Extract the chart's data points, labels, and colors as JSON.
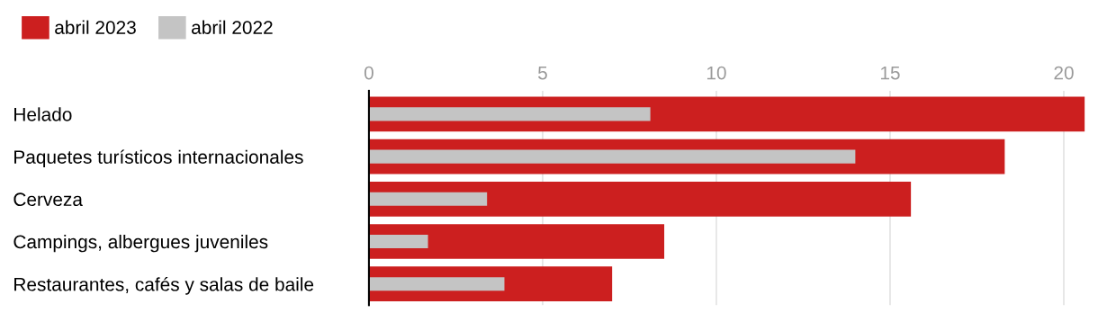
{
  "chart_data": {
    "type": "bar",
    "orientation": "horizontal",
    "categories": [
      "Helado",
      "Paquetes turísticos internacionales",
      "Cerveza",
      "Campings, albergues juveniles",
      "Restaurantes, cafés y salas de baile"
    ],
    "series": [
      {
        "name": "abril 2023",
        "color": "#cc1f1f",
        "values": [
          20.6,
          18.3,
          15.6,
          8.5,
          7.0
        ]
      },
      {
        "name": "abril 2022",
        "color": "#c4c4c4",
        "values": [
          8.1,
          14.0,
          3.4,
          1.7,
          3.9
        ]
      }
    ],
    "xlim": [
      0,
      20.7
    ],
    "xticks": [
      0,
      5,
      10,
      15,
      20
    ],
    "grid": "x",
    "legend": "top left"
  }
}
